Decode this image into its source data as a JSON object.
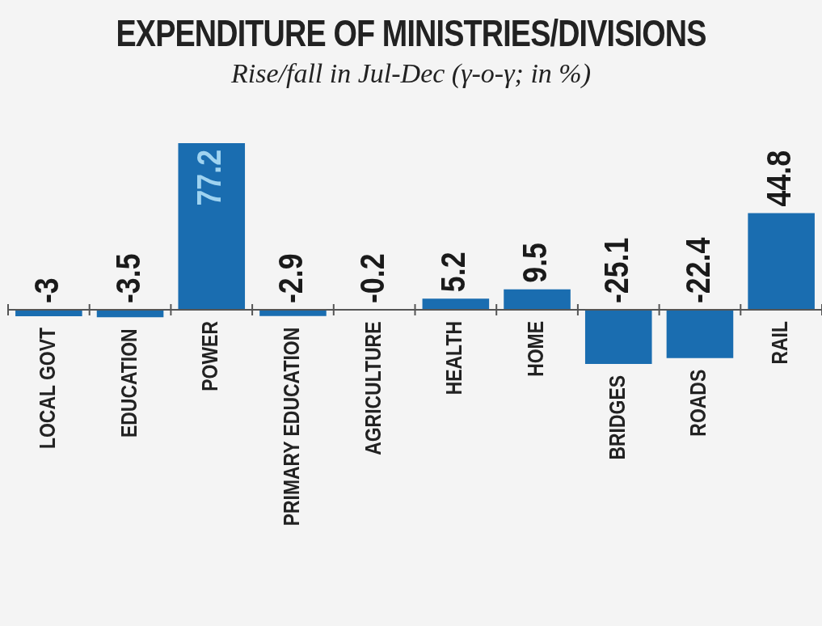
{
  "chart_data": {
    "type": "bar",
    "title": "EXPENDITURE OF MINISTRIES/DIVISIONS",
    "subtitle": "Rise/fall in Jul-Dec (γ-o-γ; in %)",
    "categories": [
      "LOCAL GOVT",
      "EDUCATION",
      "POWER",
      "PRIMARY EDUCATION",
      "AGRICULTURE",
      "HEALTH",
      "HOME",
      "BRIDGES",
      "ROADS",
      "RAIL"
    ],
    "values": [
      -3,
      -3.5,
      77.2,
      -2.9,
      -0.2,
      5.2,
      9.5,
      -25.1,
      -22.4,
      44.8
    ],
    "color": "#1a6db0",
    "data_labels": true
  }
}
